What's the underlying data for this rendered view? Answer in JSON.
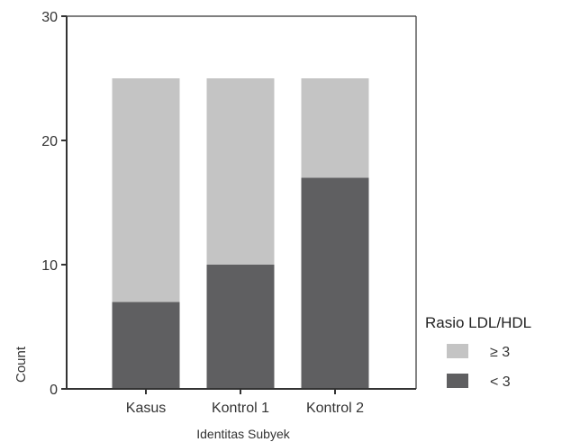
{
  "chart_data": {
    "type": "bar",
    "stacked": true,
    "categories": [
      "Kasus",
      "Kontrol 1",
      "Kontrol 2"
    ],
    "series": [
      {
        "name": "< 3",
        "values": [
          7,
          10,
          17
        ],
        "color": "#5f5f61"
      },
      {
        "name": "≥ 3",
        "values": [
          18,
          15,
          8
        ],
        "color": "#c4c4c4"
      }
    ],
    "xlabel": "Identitas Subyek",
    "ylabel": "Count",
    "ylim": [
      0,
      30
    ],
    "yticks": [
      0,
      10,
      20,
      30
    ],
    "grid": false,
    "legend": {
      "title": "Rasio LDL/HDL",
      "placement": "right",
      "items": [
        {
          "label": "≥ 3",
          "color": "#c4c4c4"
        },
        {
          "label": "< 3",
          "color": "#5f5f61"
        }
      ]
    }
  }
}
